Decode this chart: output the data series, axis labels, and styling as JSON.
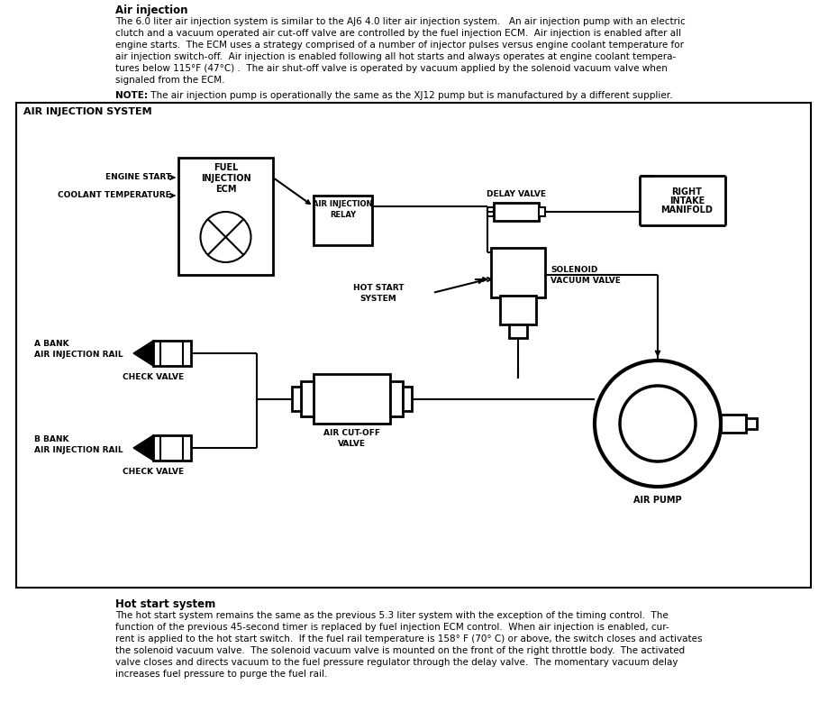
{
  "bg_color": "#ffffff",
  "top_title": "Air injection",
  "top_para": "The 6.0 liter air injection system is similar to the AJ6 4.0 liter air injection system.   An air injection pump with an electric clutch and a vacuum operated air cut-off valve are controlled by the fuel injection ECM.  Air injection is enabled after all engine starts.  The ECM uses a strategy comprised of a number of injector pulses versus engine coolant temperature for air injection switch-off.  Air injection is enabled following all hot starts and always operates at engine coolant tempera-tures below 115°F (47°C) .  The air shut-off valve is operated by vacuum applied by the solenoid vacuum valve when signaled from the ECM.",
  "note_label": "NOTE:",
  "note_body": "  The air injection pump is operationally the same as the XJ12 pump but is manufactured by a different supplier.",
  "diagram_title": "AIR INJECTION SYSTEM",
  "bottom_title": "Hot start system",
  "bottom_para": "The hot start system remains the same as the previous 5.3 liter system with the exception of the timing control.  The function of the previous 45-second timer is replaced by fuel injection ECM control.  When air injection is enabled, cur-rent is applied to the hot start switch.  If the fuel rail temperature is 158° F (70° C) or above, the switch closes and activates the solenoid vacuum valve.  The solenoid vacuum valve is mounted on the front of the right throttle body.  The activated valve closes and directs vacuum to the fuel pressure regulator through the delay valve.  The momentary vacuum delay increases fuel pressure to purge the fuel rail."
}
